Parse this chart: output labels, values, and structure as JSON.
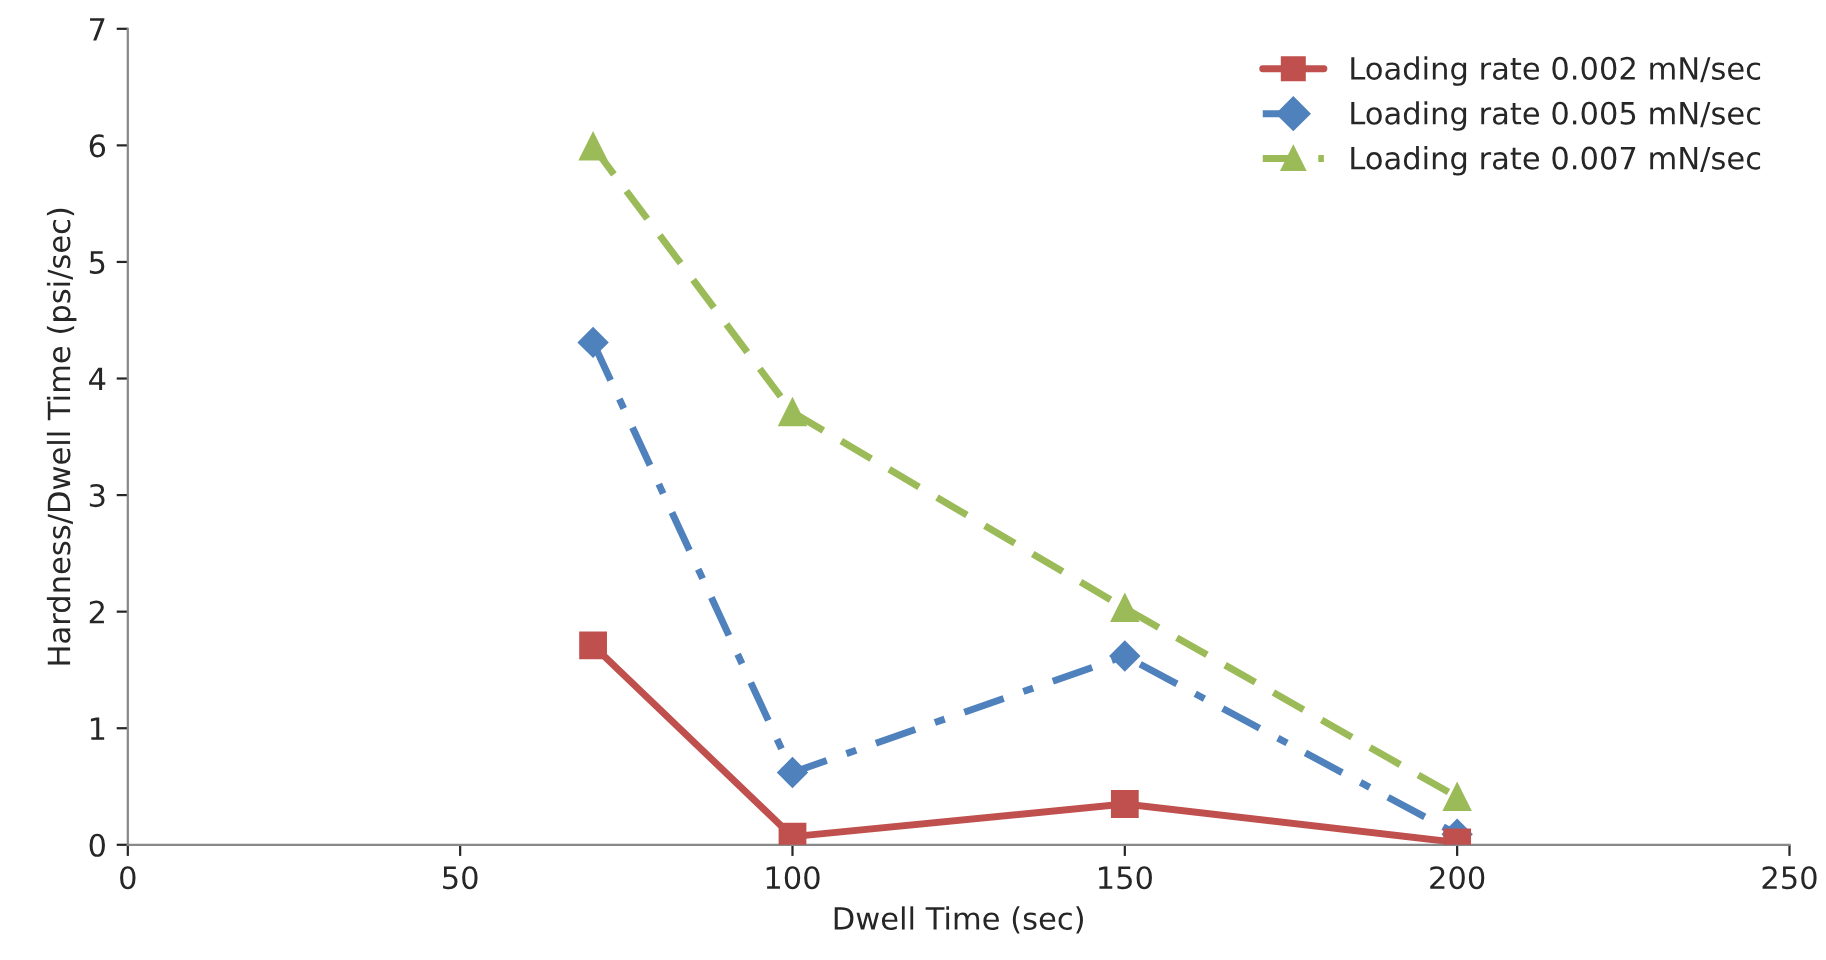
{
  "chart_data": {
    "type": "line",
    "xlabel": "Dwell Time (sec)",
    "ylabel": "Hardness/Dwell Time (psi/sec)",
    "xlim": [
      0,
      250
    ],
    "xticks": [
      0,
      50,
      100,
      150,
      200,
      250
    ],
    "ylim": [
      0,
      7
    ],
    "yticks": [
      0,
      1,
      2,
      3,
      4,
      5,
      6,
      7
    ],
    "grid": false,
    "legend": "top right",
    "x": [
      70,
      100,
      150,
      200
    ],
    "series": [
      {
        "name": "Loading rate 0.002 mN/sec",
        "color": "#c0504d",
        "marker": "square",
        "line_style": "solid",
        "values": [
          1.71,
          0.07,
          0.35,
          0.02
        ]
      },
      {
        "name": "Loading rate 0.005 mN/sec",
        "color": "#4f81bd",
        "marker": "diamond",
        "line_style": "dashdot",
        "values": [
          4.31,
          0.62,
          1.62,
          0.09
        ]
      },
      {
        "name": "Loading rate 0.007 mN/sec",
        "color": "#9bbb59",
        "marker": "triangle",
        "line_style": "dashed",
        "values": [
          5.99,
          3.71,
          2.03,
          0.41
        ]
      }
    ]
  }
}
